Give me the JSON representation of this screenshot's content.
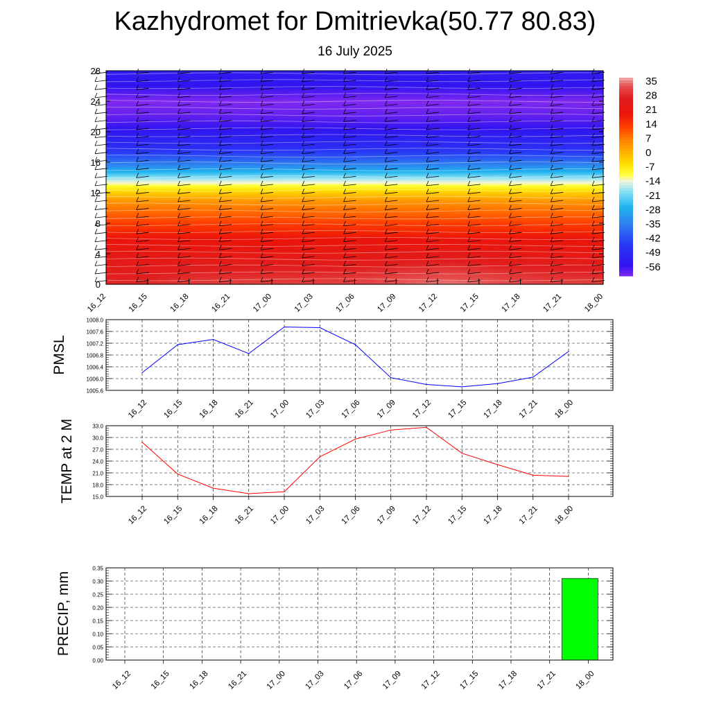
{
  "title": "Kazhydromet for Dmitrievka(50.77 80.83)",
  "subtitle": "16 July 2025",
  "colors": {
    "pmsl_line": "#0000ff",
    "temp_line": "#ff0000",
    "precip_bar": "#00ff00"
  },
  "chart_data": [
    {
      "type": "heatmap",
      "title": "",
      "xlabel": "",
      "ylabel": "",
      "x_ticks": [
        "16_12",
        "16_15",
        "16_18",
        "16_21",
        "17_00",
        "17_03",
        "17_06",
        "17_09",
        "17_12",
        "17_15",
        "17_18",
        "17_21",
        "18_00"
      ],
      "y_ticks": [
        0,
        4,
        8,
        12,
        16,
        20,
        24,
        28
      ],
      "ylim": [
        0,
        28
      ],
      "colorbar_labels": [
        "35",
        "28",
        "21",
        "14",
        "7",
        "0",
        "-7",
        "-14",
        "-21",
        "-28",
        "-35",
        "-42",
        "-49",
        "-56"
      ],
      "colorbar_range": [
        -60,
        38
      ],
      "profile_levels": [
        0,
        2,
        4,
        6,
        8,
        10,
        11,
        12,
        13,
        14,
        15,
        16,
        17,
        18,
        20,
        22,
        24,
        26,
        28
      ],
      "profile_values": [
        32,
        28,
        24,
        20,
        14,
        8,
        4,
        -2,
        -10,
        -18,
        -28,
        -36,
        -42,
        -48,
        -54,
        -58,
        -60,
        -55,
        -53
      ],
      "warm_anomaly_max": 4,
      "wind_barbs": true,
      "contour_lines": true
    },
    {
      "type": "line",
      "ylabel": "PMSL",
      "categories": [
        "16_12",
        "16_15",
        "16_18",
        "16_21",
        "17_00",
        "17_03",
        "17_06",
        "17_09",
        "17_12",
        "17_15",
        "17_18",
        "17_21",
        "18_00"
      ],
      "values": [
        1006.2,
        1007.15,
        1007.33,
        1006.85,
        1007.75,
        1007.73,
        1007.15,
        1006.03,
        1005.8,
        1005.72,
        1005.83,
        1006.05,
        1006.92
      ],
      "ylim": [
        1005.6,
        1008.0
      ],
      "y_ticks": [
        "1005.6",
        "1006.0",
        "1006.4",
        "1006.8",
        "1007.2",
        "1007.6",
        "1008.0"
      ],
      "grid": true
    },
    {
      "type": "line",
      "ylabel": "TEMP at 2 M",
      "categories": [
        "16_12",
        "16_15",
        "16_18",
        "16_21",
        "17_00",
        "17_03",
        "17_06",
        "17_09",
        "17_12",
        "17_15",
        "17_18",
        "17_21",
        "18_00"
      ],
      "values": [
        28.8,
        20.7,
        17.1,
        15.7,
        16.2,
        25.1,
        29.6,
        31.9,
        32.6,
        26.0,
        23.1,
        20.4,
        20.1
      ],
      "ylim": [
        15.0,
        33.0
      ],
      "y_ticks": [
        "15.0",
        "18.0",
        "21.0",
        "24.0",
        "27.0",
        "30.0",
        "33.0"
      ],
      "grid": true
    },
    {
      "type": "bar",
      "ylabel": "PRECIP, mm",
      "categories": [
        "16_12",
        "16_15",
        "16_18",
        "16_21",
        "17_00",
        "17_03",
        "17_06",
        "17_09",
        "17_12",
        "17_15",
        "17_18",
        "17_21",
        "18_00"
      ],
      "values": [
        0,
        0,
        0,
        0,
        0,
        0,
        0,
        0,
        0,
        0,
        0,
        0,
        0.31
      ],
      "ylim": [
        0.0,
        0.35
      ],
      "y_ticks": [
        "0.00",
        "0.05",
        "0.10",
        "0.15",
        "0.20",
        "0.25",
        "0.30",
        "0.35"
      ],
      "grid": true
    }
  ]
}
